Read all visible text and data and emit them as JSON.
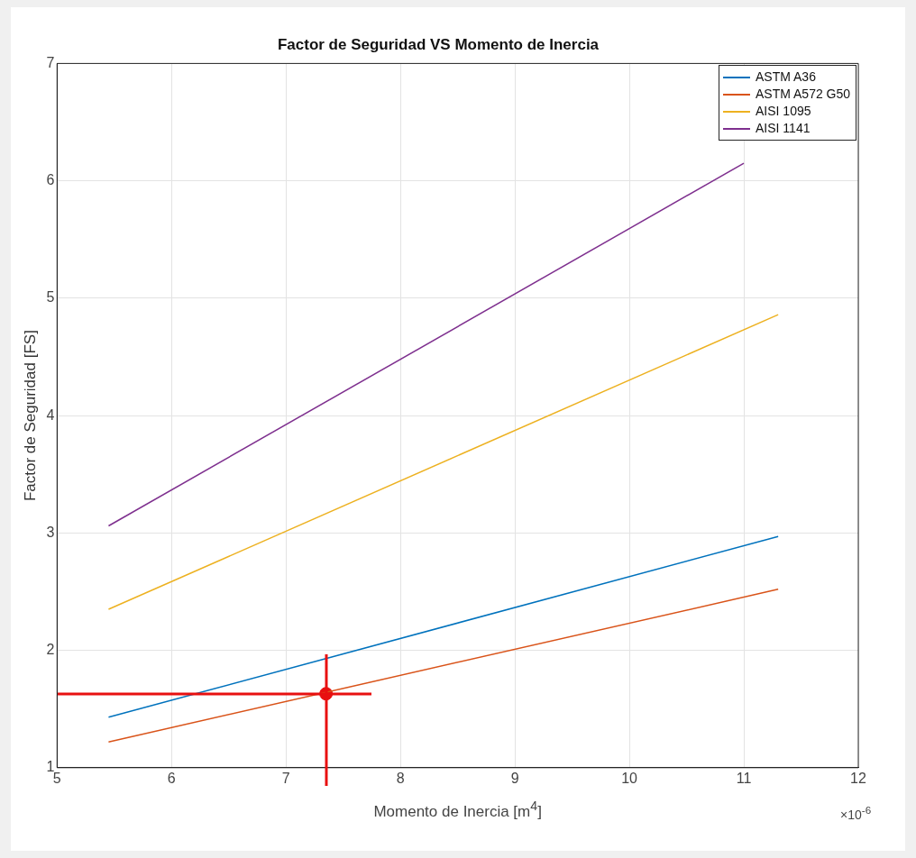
{
  "chart_data": {
    "type": "line",
    "title": "Factor de Seguridad VS Momento de Inercia",
    "xlabel": "Momento de Inercia [m$^{4}$]",
    "ylabel": "Factor de Seguridad [FS]",
    "series": [
      {
        "name": "ASTM A36",
        "color": "#0072bd",
        "x": [
          5.45,
          11.3
        ],
        "values": [
          1.43,
          2.97
        ]
      },
      {
        "name": "ASTM A572 G50",
        "color": "#d95319",
        "x": [
          5.45,
          11.3
        ],
        "values": [
          1.22,
          2.52
        ]
      },
      {
        "name": "AISI 1095",
        "color": "#edb120",
        "x": [
          5.45,
          11.3
        ],
        "values": [
          2.35,
          4.86
        ]
      },
      {
        "name": "AISI 1141",
        "color": "#7e2f8e",
        "x": [
          5.45,
          11.0
        ],
        "values": [
          3.06,
          6.15
        ]
      },
      {
        "type": "scatter",
        "color": "#e81010",
        "marker": "circle",
        "x": [
          7.35
        ],
        "values": [
          1.63
        ]
      }
    ],
    "xlim": [
      5,
      12
    ],
    "xticks": [
      5,
      6,
      7,
      8,
      9,
      10,
      11,
      12
    ],
    "ylim": [
      1,
      7
    ],
    "yticks": [
      1,
      2,
      3,
      4,
      5,
      6,
      7
    ],
    "annotations": [
      "×10$^{-6}$"
    ],
    "grid": true,
    "legend": "top right",
    "marker": "none",
    "line_style": "solid"
  }
}
